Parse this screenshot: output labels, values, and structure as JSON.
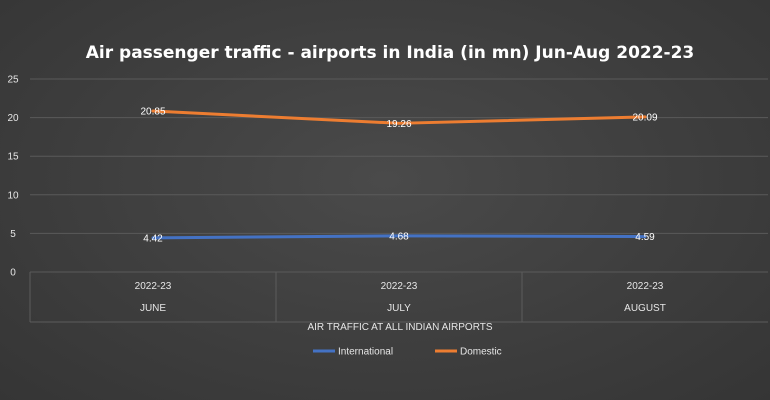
{
  "chart_data": {
    "type": "line",
    "title": "Air passenger traffic - airports in India (in mn) Jun-Aug 2022-23",
    "categories": [
      {
        "year": "2022-23",
        "month": "JUNE"
      },
      {
        "year": "2022-23",
        "month": "JULY"
      },
      {
        "year": "2022-23",
        "month": "AUGUST"
      }
    ],
    "xlabel": "AIR TRAFFIC AT ALL INDIAN AIRPORTS",
    "ylabel": "",
    "ylim": [
      0,
      25
    ],
    "yticks": [
      "0",
      "5",
      "10",
      "15",
      "20",
      "25"
    ],
    "grid": true,
    "legend_position": "bottom",
    "series": [
      {
        "name": "International",
        "values": [
          4.42,
          4.68,
          4.59
        ],
        "labels": [
          "4.42",
          "4.68",
          "4.59"
        ],
        "color": "#4472c4"
      },
      {
        "name": "Domestic",
        "values": [
          20.85,
          19.26,
          20.09
        ],
        "labels": [
          "20.85",
          "19.26",
          "20.09"
        ],
        "color": "#ed7d31"
      }
    ]
  }
}
